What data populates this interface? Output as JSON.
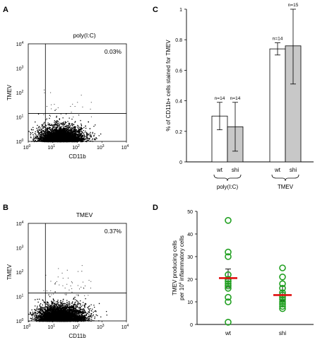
{
  "panels": {
    "A": "A",
    "B": "B",
    "C": "C",
    "D": "D"
  },
  "chart_data": [
    {
      "panel": "A",
      "type": "scatter",
      "title": "poly(I:C)",
      "xlabel": "CD11b",
      "ylabel": "TMEV",
      "x_scale": "log",
      "y_scale": "log",
      "xlim": [
        1,
        10000
      ],
      "ylim": [
        1,
        10000
      ],
      "gate": {
        "x": 5,
        "y": 14
      },
      "quadrant_percent": "0.03%",
      "x_ticks": [
        {
          "base": "10",
          "exp": "0"
        },
        {
          "base": "10",
          "exp": "1"
        },
        {
          "base": "10",
          "exp": "2"
        },
        {
          "base": "10",
          "exp": "3"
        },
        {
          "base": "10",
          "exp": "4"
        }
      ],
      "y_ticks": [
        {
          "base": "10",
          "exp": "0"
        },
        {
          "base": "10",
          "exp": "1"
        },
        {
          "base": "10",
          "exp": "2"
        },
        {
          "base": "10",
          "exp": "3"
        },
        {
          "base": "10",
          "exp": "4"
        }
      ]
    },
    {
      "panel": "B",
      "type": "scatter",
      "title": "TMEV",
      "xlabel": "CD11b",
      "ylabel": "TMEV",
      "x_scale": "log",
      "y_scale": "log",
      "xlim": [
        1,
        10000
      ],
      "ylim": [
        1,
        10000
      ],
      "gate": {
        "x": 5,
        "y": 14
      },
      "quadrant_percent": "0.37%",
      "x_ticks": [
        {
          "base": "10",
          "exp": "0"
        },
        {
          "base": "10",
          "exp": "1"
        },
        {
          "base": "10",
          "exp": "2"
        },
        {
          "base": "10",
          "exp": "3"
        },
        {
          "base": "10",
          "exp": "4"
        }
      ],
      "y_ticks": [
        {
          "base": "10",
          "exp": "0"
        },
        {
          "base": "10",
          "exp": "1"
        },
        {
          "base": "10",
          "exp": "2"
        },
        {
          "base": "10",
          "exp": "3"
        },
        {
          "base": "10",
          "exp": "4"
        }
      ]
    },
    {
      "panel": "C",
      "type": "bar",
      "ylabel": "% of CD11b+ cells stained for TMEV",
      "ylim": [
        0,
        1
      ],
      "y_ticks": [
        "0",
        "0.2",
        "0.4",
        "0.6",
        "0.8",
        "1"
      ],
      "groups": [
        {
          "label": "poly(I:C)",
          "bars": [
            {
              "category": "wt",
              "value": 0.3,
              "err_low": 0.21,
              "err_high": 0.39,
              "n": "n=14",
              "color": "#ffffff"
            },
            {
              "category": "shi",
              "value": 0.23,
              "err_low": 0.07,
              "err_high": 0.39,
              "n": "n=14",
              "color": "#c8c8c8"
            }
          ]
        },
        {
          "label": "TMEV",
          "bars": [
            {
              "category": "wt",
              "value": 0.74,
              "err_low": 0.7,
              "err_high": 0.78,
              "n": "n=14",
              "color": "#ffffff"
            },
            {
              "category": "shi",
              "value": 0.76,
              "err_low": 0.51,
              "err_high": 1.0,
              "n": "n=15",
              "color": "#c8c8c8"
            }
          ]
        }
      ]
    },
    {
      "panel": "D",
      "type": "scatter",
      "ylabel_line1": "TMEV producing cells",
      "ylabel_line2_pre": "per 10",
      "ylabel_line2_exp": "4",
      "ylabel_line2_post": " inflammatory cells",
      "ylim": [
        0,
        50
      ],
      "y_ticks": [
        "0",
        "10",
        "20",
        "30",
        "40",
        "50"
      ],
      "categories": [
        "wt",
        "shi"
      ],
      "series": [
        {
          "category": "wt",
          "values": [
            46,
            32,
            30,
            22,
            20,
            19,
            18,
            17,
            16,
            12,
            10,
            1
          ],
          "mean": 20.5,
          "sem_low": 16.5,
          "sem_high": 24.5
        },
        {
          "category": "shi",
          "values": [
            25,
            21,
            18,
            16,
            14,
            13,
            12,
            11,
            10,
            9,
            8,
            7
          ],
          "mean": 13.0,
          "sem_low": 10.5,
          "sem_high": 17.0
        }
      ],
      "marker_color": "#22a022",
      "mean_color": "#e01010"
    }
  ]
}
